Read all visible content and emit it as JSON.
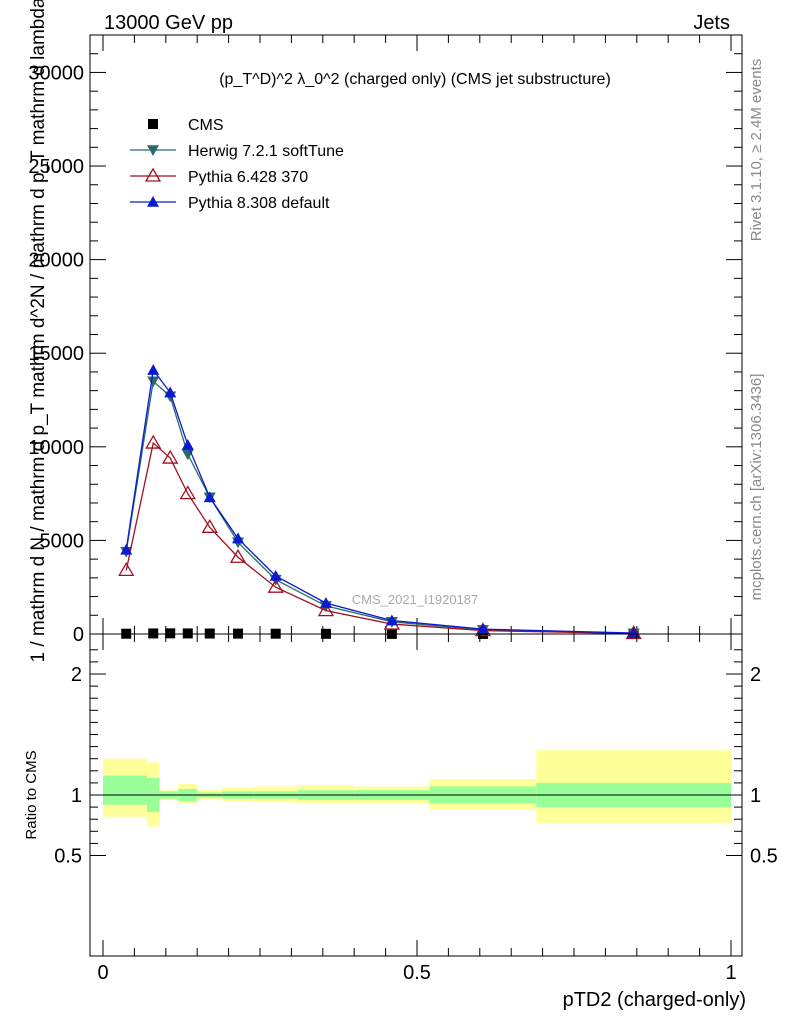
{
  "header": {
    "left": "13000 GeV pp",
    "right": "Jets"
  },
  "side_labels": {
    "rivet": "Rivet 3.1.10, ≥ 2.4M events",
    "mcplots": "mcplots.cern.ch [arXiv:1306.3436]"
  },
  "watermark": "CMS_2021_I1920187",
  "colors": {
    "cms": "#000000",
    "herwig": "#2a6a6a",
    "pythia6": "#a01020",
    "pythia8": "#0a1ad0",
    "band_inner": "#99ff99",
    "band_outer": "#ffff99"
  },
  "chart_data": [
    {
      "type": "line",
      "title": "(p_T^D)^2 λ_0^2 (charged only) (CMS jet substructure)",
      "ylabel": "1 / mathrm d N / mathrm d p_T mathrm d^2N / mathrm d p_T mathrm d lambda",
      "xlim": [
        0,
        1
      ],
      "ylim": [
        0,
        32000
      ],
      "yticks": [
        0,
        5000,
        10000,
        15000,
        20000,
        25000,
        30000
      ],
      "ytick_labels": [
        "0",
        "5000",
        "10000",
        "15000",
        "20000",
        "25000",
        "30000"
      ],
      "x": [
        0.037,
        0.08,
        0.107,
        0.135,
        0.17,
        0.215,
        0.275,
        0.355,
        0.46,
        0.605,
        0.845
      ],
      "series": [
        {
          "name": "CMS",
          "marker": "square",
          "values": [
            15,
            30,
            35,
            30,
            25,
            20,
            15,
            10,
            6,
            3,
            1
          ]
        },
        {
          "name": "Herwig 7.2.1 softTune",
          "marker": "triangle-down",
          "values": [
            4400,
            13500,
            12700,
            9600,
            7300,
            4900,
            2900,
            1500,
            650,
            220,
            40
          ]
        },
        {
          "name": "Pythia 6.428 370",
          "marker": "triangle-open",
          "values": [
            3400,
            10200,
            9400,
            7500,
            5700,
            4100,
            2500,
            1250,
            530,
            180,
            30
          ]
        },
        {
          "name": "Pythia 8.308 default",
          "marker": "triangle-up",
          "values": [
            4500,
            14100,
            12900,
            10100,
            7300,
            5100,
            3100,
            1650,
            720,
            260,
            50
          ]
        }
      ],
      "legend_position": "top-left"
    },
    {
      "type": "area",
      "ylabel": "Ratio to CMS",
      "xlabel": "pTD2 (charged-only)",
      "xlim": [
        0,
        1
      ],
      "ylim": [
        0.35,
        2.3
      ],
      "xticks": [
        0,
        0.5,
        1
      ],
      "xtick_labels": [
        "0",
        "0.5",
        "1"
      ],
      "yticks": [
        0.5,
        1,
        2
      ],
      "ytick_labels": [
        "0.5",
        "1",
        "2"
      ],
      "reference_line": 1,
      "bins": [
        {
          "x0": 0.0,
          "x1": 0.07,
          "inner": [
            0.92,
            1.16
          ],
          "outer": [
            0.82,
            1.3
          ]
        },
        {
          "x0": 0.07,
          "x1": 0.09,
          "inner": [
            0.86,
            1.14
          ],
          "outer": [
            0.74,
            1.27
          ]
        },
        {
          "x0": 0.09,
          "x1": 0.12,
          "inner": [
            0.97,
            1.03
          ],
          "outer": [
            0.96,
            1.04
          ]
        },
        {
          "x0": 0.12,
          "x1": 0.15,
          "inner": [
            0.95,
            1.05
          ],
          "outer": [
            0.93,
            1.09
          ]
        },
        {
          "x0": 0.15,
          "x1": 0.19,
          "inner": [
            0.98,
            1.02
          ],
          "outer": [
            0.96,
            1.04
          ]
        },
        {
          "x0": 0.19,
          "x1": 0.24,
          "inner": [
            0.97,
            1.03
          ],
          "outer": [
            0.95,
            1.06
          ]
        },
        {
          "x0": 0.24,
          "x1": 0.31,
          "inner": [
            0.97,
            1.03
          ],
          "outer": [
            0.94,
            1.07
          ]
        },
        {
          "x0": 0.31,
          "x1": 0.4,
          "inner": [
            0.96,
            1.04
          ],
          "outer": [
            0.93,
            1.08
          ]
        },
        {
          "x0": 0.4,
          "x1": 0.52,
          "inner": [
            0.96,
            1.04
          ],
          "outer": [
            0.93,
            1.07
          ]
        },
        {
          "x0": 0.52,
          "x1": 0.69,
          "inner": [
            0.93,
            1.07
          ],
          "outer": [
            0.88,
            1.13
          ]
        },
        {
          "x0": 0.69,
          "x1": 1.0,
          "inner": [
            0.9,
            1.1
          ],
          "outer": [
            0.77,
            1.37
          ]
        }
      ]
    }
  ]
}
